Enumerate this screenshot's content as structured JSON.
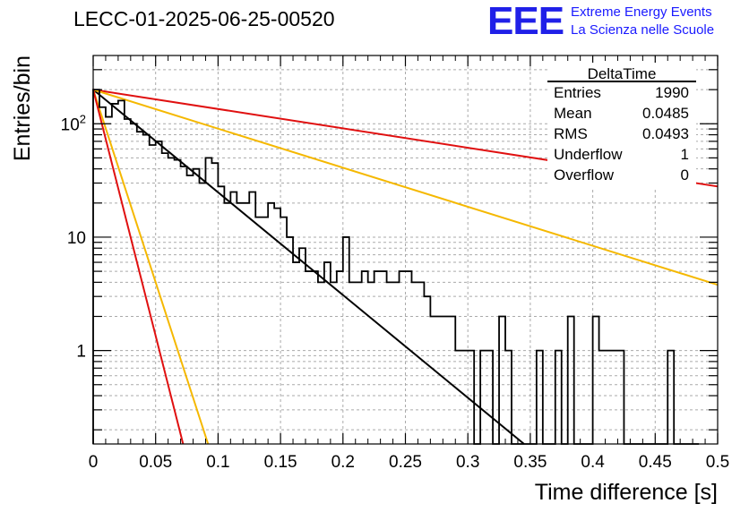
{
  "header": {
    "title": "LECC-01-2025-06-25-00520",
    "logo_text": "EEE",
    "logo_line1": "Extreme Energy Events",
    "logo_line2": "La Scienza nelle Scuole"
  },
  "stats": {
    "name": "DeltaTime",
    "rows": [
      {
        "label": "Entries",
        "value": "1990"
      },
      {
        "label": "Mean",
        "value": "0.0485"
      },
      {
        "label": "RMS",
        "value": "0.0493"
      },
      {
        "label": "Underflow",
        "value": "1"
      },
      {
        "label": "Overflow",
        "value": "0"
      }
    ]
  },
  "chart_data": {
    "type": "line",
    "title": "LECC-01-2025-06-25-00520",
    "xlabel": "Time difference [s]",
    "ylabel": "Entries/bin",
    "xlim": [
      0,
      0.5
    ],
    "ylim": [
      0.15,
      400
    ],
    "ylog": true,
    "grid": true,
    "x_ticks": [
      0,
      0.05,
      0.1,
      0.15,
      0.2,
      0.25,
      0.3,
      0.35,
      0.4,
      0.45,
      0.5
    ],
    "x_tick_labels": [
      "0",
      "0.05",
      "0.1",
      "0.15",
      "0.2",
      "0.25",
      "0.3",
      "0.35",
      "0.4",
      "0.45",
      "0.5"
    ],
    "y_tick_labels": [
      {
        "value": 1,
        "label": "1"
      },
      {
        "value": 10,
        "label": "10"
      },
      {
        "value": 100,
        "label": "10^2"
      }
    ],
    "histogram": {
      "bin_width": 0.005,
      "start": 0,
      "color": "#000000",
      "values": [
        200,
        140,
        115,
        150,
        160,
        110,
        100,
        85,
        80,
        65,
        70,
        55,
        50,
        48,
        42,
        35,
        40,
        30,
        50,
        45,
        28,
        20,
        25,
        20,
        20,
        25,
        15,
        15,
        20,
        18,
        15,
        10,
        6,
        8,
        5,
        5,
        4,
        6,
        4,
        5,
        10,
        4,
        4,
        5,
        4,
        5,
        5,
        4,
        4,
        5,
        5,
        4,
        4,
        3,
        2,
        2,
        2,
        2,
        1,
        1,
        1,
        0,
        1,
        1,
        0,
        2,
        1,
        0,
        0,
        0,
        0,
        1,
        0,
        0,
        1,
        0,
        2,
        0,
        0,
        0,
        2,
        1,
        1,
        1,
        1,
        0,
        0,
        0,
        0,
        0,
        0,
        0,
        1,
        0,
        0,
        0,
        0
      ]
    },
    "series": [
      {
        "color": "#000000",
        "values": [
          [
            0,
            200
          ],
          [
            0.345,
            0.15
          ]
        ]
      },
      {
        "color": "#e01010",
        "values": [
          [
            0,
            200
          ],
          [
            0.5,
            28
          ]
        ]
      },
      {
        "color": "#f5b800",
        "values": [
          [
            0,
            200
          ],
          [
            0.5,
            3.8
          ]
        ]
      },
      {
        "color": "#f5b800",
        "values": [
          [
            0,
            200
          ],
          [
            0.092,
            0.15
          ]
        ]
      },
      {
        "color": "#e01010",
        "values": [
          [
            0,
            200
          ],
          [
            0.072,
            0.15
          ]
        ]
      }
    ]
  }
}
